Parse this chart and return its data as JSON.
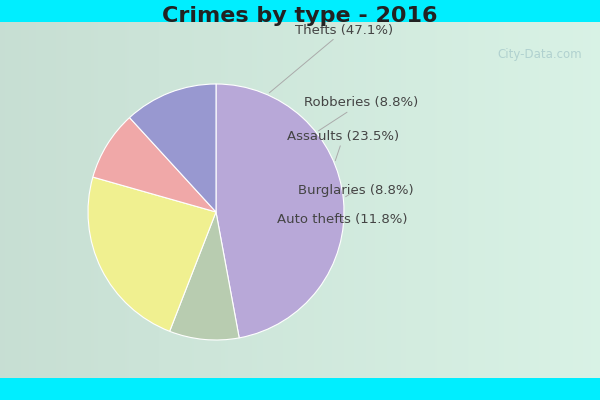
{
  "title": "Crimes by type - 2016",
  "slices": [
    {
      "label": "Thefts (47.1%)",
      "value": 47.1,
      "color": "#b8a8d8"
    },
    {
      "label": "Robberies (8.8%)",
      "value": 8.8,
      "color": "#b8ccb0"
    },
    {
      "label": "Assaults (23.5%)",
      "value": 23.5,
      "color": "#f0f090"
    },
    {
      "label": "Burglaries (8.8%)",
      "value": 8.8,
      "color": "#f0a8a8"
    },
    {
      "label": "Auto thefts (11.8%)",
      "value": 11.8,
      "color": "#9898d0"
    }
  ],
  "bg_top": "#00eeff",
  "bg_main_top": "#d0ede0",
  "bg_main_bottom": "#c8e8d8",
  "title_fontsize": 16,
  "label_fontsize": 9.5,
  "watermark": "City-Data.com",
  "label_color": "#444444",
  "title_color": "#222222"
}
